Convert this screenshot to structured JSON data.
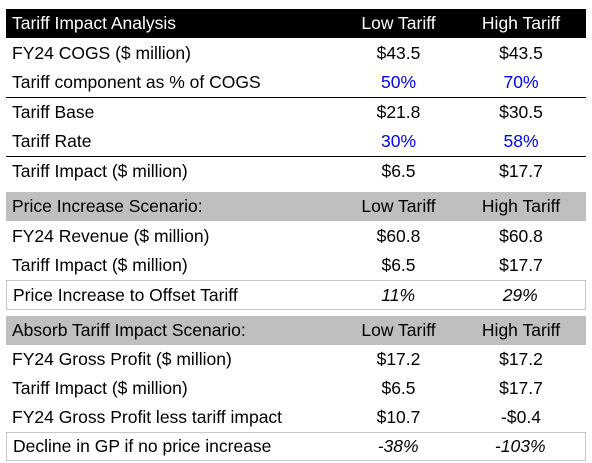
{
  "section1": {
    "header": {
      "label": "Tariff Impact Analysis",
      "low": "Low Tariff",
      "high": "High Tariff"
    },
    "rows": [
      {
        "label": "FY24 COGS ($ million)",
        "low": "$43.5",
        "high": "$43.5"
      },
      {
        "label": "Tariff component as % of COGS",
        "low": "50%",
        "high": "70%"
      },
      {
        "label": "Tariff Base",
        "low": "$21.8",
        "high": "$30.5"
      },
      {
        "label": "Tariff Rate",
        "low": "30%",
        "high": "58%"
      },
      {
        "label": "Tariff Impact ($ million)",
        "low": "$6.5",
        "high": "$17.7"
      }
    ]
  },
  "section2": {
    "header": {
      "label": "Price Increase Scenario:",
      "low": "Low Tariff",
      "high": "High Tariff"
    },
    "rows": [
      {
        "label": "FY24 Revenue ($ million)",
        "low": "$60.8",
        "high": "$60.8"
      },
      {
        "label": "Tariff Impact ($ million)",
        "low": "$6.5",
        "high": "$17.7"
      },
      {
        "label": "Price Increase to Offset Tariff",
        "low": "11%",
        "high": "29%"
      }
    ]
  },
  "section3": {
    "header": {
      "label": "Absorb Tariff Impact Scenario:",
      "low": "Low Tariff",
      "high": "High Tariff"
    },
    "rows": [
      {
        "label": "FY24 Gross Profit ($ million)",
        "low": "$17.2",
        "high": "$17.2"
      },
      {
        "label": "Tariff Impact ($ million)",
        "low": "$6.5",
        "high": "$17.7"
      },
      {
        "label": "FY24 Gross Profit less tariff impact",
        "low": "$10.7",
        "high": "-$0.4"
      },
      {
        "label": "Decline in GP if no price increase",
        "low": "-38%",
        "high": "-103%"
      }
    ]
  }
}
